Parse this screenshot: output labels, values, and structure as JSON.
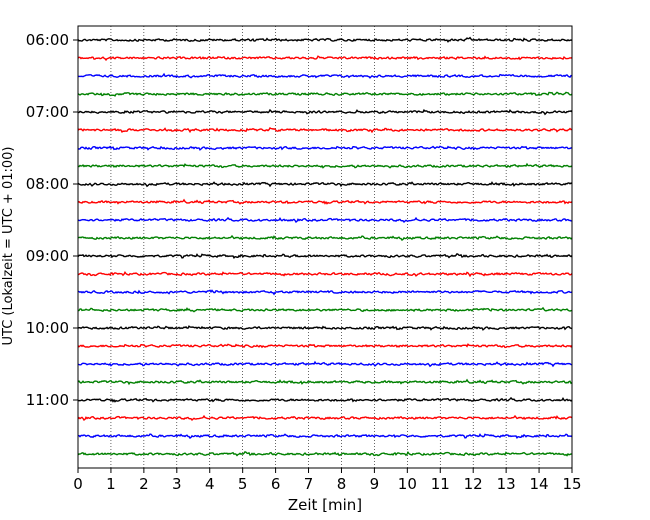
{
  "chart_data": {
    "type": "line",
    "title": "",
    "xlabel": "Zeit  [min]",
    "ylabel": "UTC (Lokalzeit = UTC + 01:00)",
    "xlim": [
      0,
      15
    ],
    "x_ticks": [
      "0",
      "1",
      "2",
      "3",
      "4",
      "5",
      "6",
      "7",
      "8",
      "9",
      "10",
      "11",
      "12",
      "13",
      "14",
      "15"
    ],
    "y_ticks": [
      "06:00",
      "07:00",
      "08:00",
      "09:00",
      "10:00",
      "11:00"
    ],
    "grid": "vertical dotted",
    "trace_interval_minutes": 15,
    "trace_start": "06:00",
    "trace_colors": [
      "#000000",
      "#ff0000",
      "#0000ff",
      "#008000"
    ],
    "series": [
      {
        "start": "06:00",
        "color": "#000000"
      },
      {
        "start": "06:15",
        "color": "#ff0000"
      },
      {
        "start": "06:30",
        "color": "#0000ff"
      },
      {
        "start": "06:45",
        "color": "#008000"
      },
      {
        "start": "07:00",
        "color": "#000000"
      },
      {
        "start": "07:15",
        "color": "#ff0000"
      },
      {
        "start": "07:30",
        "color": "#0000ff"
      },
      {
        "start": "07:45",
        "color": "#008000"
      },
      {
        "start": "08:00",
        "color": "#000000"
      },
      {
        "start": "08:15",
        "color": "#ff0000"
      },
      {
        "start": "08:30",
        "color": "#0000ff"
      },
      {
        "start": "08:45",
        "color": "#008000"
      },
      {
        "start": "09:00",
        "color": "#000000"
      },
      {
        "start": "09:15",
        "color": "#ff0000"
      },
      {
        "start": "09:30",
        "color": "#0000ff"
      },
      {
        "start": "09:45",
        "color": "#008000"
      },
      {
        "start": "10:00",
        "color": "#000000"
      },
      {
        "start": "10:15",
        "color": "#ff0000"
      },
      {
        "start": "10:30",
        "color": "#0000ff"
      },
      {
        "start": "10:45",
        "color": "#008000"
      },
      {
        "start": "11:00",
        "color": "#000000"
      },
      {
        "start": "11:15",
        "color": "#ff0000"
      },
      {
        "start": "11:30",
        "color": "#0000ff"
      },
      {
        "start": "11:45",
        "color": "#008000"
      }
    ]
  }
}
